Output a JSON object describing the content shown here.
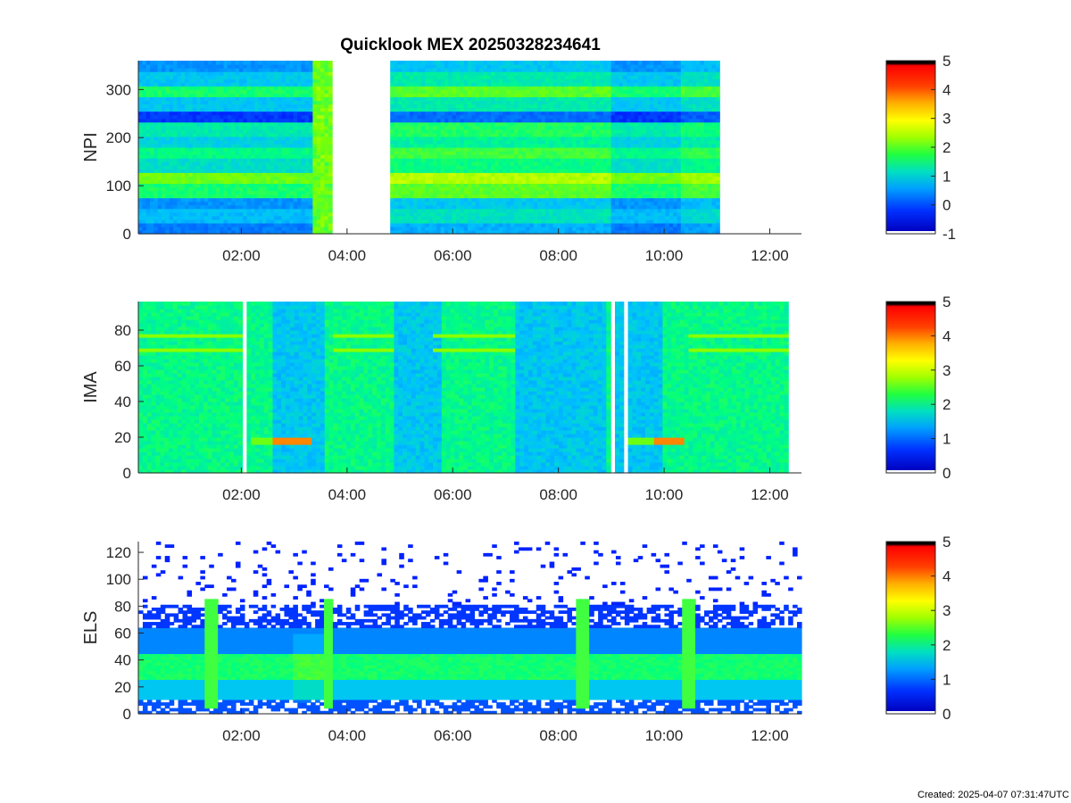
{
  "figure": {
    "title": "Quicklook MEX 20250328234641",
    "footer": "Created: 2025-04-07 07:31:47UTC"
  },
  "colors": {
    "colormap": [
      "#0000ff",
      "#0060ff",
      "#00c0ff",
      "#00ff80",
      "#80ff00",
      "#ffff00",
      "#ff8000",
      "#ff0000",
      "#000000"
    ]
  },
  "chart_data": [
    {
      "type": "heatmap",
      "panel": "NPI",
      "title": "Quicklook MEX 20250328234641",
      "ylabel": "NPI",
      "xlabel": "",
      "x_ticks": [
        "02:00",
        "04:00",
        "06:00",
        "08:00",
        "10:00",
        "12:00"
      ],
      "x_tick_hours": [
        2,
        4,
        6,
        8,
        10,
        12
      ],
      "xlim_hours": [
        0.05,
        12.6
      ],
      "ylim": [
        0,
        360
      ],
      "y_ticks": [
        0,
        100,
        200,
        300
      ],
      "colorbar": {
        "clim": [
          -1,
          5
        ],
        "ticks": [
          -1,
          0,
          1,
          2,
          3,
          4,
          5
        ]
      },
      "data_gaps_hours": [
        [
          3.7,
          4.8
        ]
      ],
      "data_end_hours": 11.05
    },
    {
      "type": "heatmap",
      "panel": "IMA",
      "ylabel": "IMA",
      "xlabel": "",
      "x_ticks": [
        "02:00",
        "04:00",
        "06:00",
        "08:00",
        "10:00",
        "12:00"
      ],
      "x_tick_hours": [
        2,
        4,
        6,
        8,
        10,
        12
      ],
      "xlim_hours": [
        0.05,
        12.6
      ],
      "ylim": [
        0,
        96
      ],
      "y_ticks": [
        0,
        20,
        40,
        60,
        80
      ],
      "colorbar": {
        "clim": [
          0,
          5
        ],
        "ticks": [
          0,
          1,
          2,
          3,
          4,
          5
        ]
      },
      "data_gaps_hours": [
        [
          2.0,
          2.1
        ],
        [
          8.95,
          9.05
        ],
        [
          9.25,
          9.35
        ]
      ],
      "data_end_hours": 12.35
    },
    {
      "type": "heatmap",
      "panel": "ELS",
      "ylabel": "ELS",
      "xlabel": "",
      "x_ticks": [
        "02:00",
        "04:00",
        "06:00",
        "08:00",
        "10:00",
        "12:00"
      ],
      "x_tick_hours": [
        2,
        4,
        6,
        8,
        10,
        12
      ],
      "xlim_hours": [
        0.05,
        12.6
      ],
      "ylim": [
        0,
        128
      ],
      "y_ticks": [
        0,
        20,
        40,
        60,
        80,
        100,
        120
      ],
      "colorbar": {
        "clim": [
          0,
          5
        ],
        "ticks": [
          0,
          1,
          2,
          3,
          4,
          5
        ]
      },
      "data_gaps_hours": [],
      "data_end_hours": 12.6
    }
  ]
}
